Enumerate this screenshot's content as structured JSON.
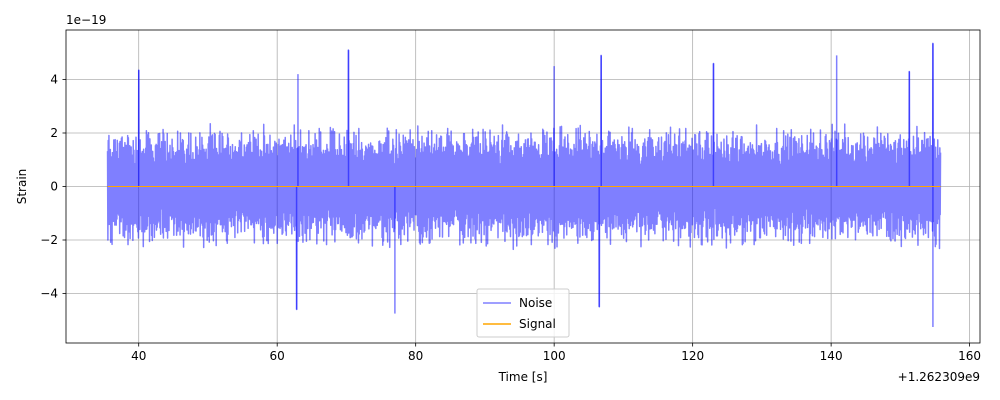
{
  "chart_data": {
    "type": "line",
    "title": "",
    "xlabel": "Time [s]",
    "ylabel": "Strain",
    "x_offset_label": "+1.262309e9",
    "y_scale_label": "1e−19",
    "xlim": [
      29.5,
      161.5
    ],
    "ylim": [
      -5.85,
      5.85
    ],
    "x_ticks": [
      40,
      60,
      80,
      100,
      120,
      140,
      160
    ],
    "x_tick_labels": [
      "40",
      "60",
      "80",
      "100",
      "120",
      "140",
      "160"
    ],
    "y_ticks": [
      -4,
      -2,
      0,
      2,
      4
    ],
    "y_tick_labels": [
      "−4",
      "−2",
      "0",
      "2",
      "4"
    ],
    "grid": true,
    "legend_position": "lower center",
    "series": [
      {
        "name": "Noise",
        "color": "#0000ff",
        "opacity": 0.5,
        "x_range": [
          35.5,
          155.8
        ],
        "typical_amplitude": 2.4,
        "peaks": [
          {
            "x": 40.0,
            "y": 4.35
          },
          {
            "x": 63.0,
            "y": 4.2
          },
          {
            "x": 62.8,
            "y": -4.6
          },
          {
            "x": 70.3,
            "y": 5.1
          },
          {
            "x": 77.0,
            "y": -4.75
          },
          {
            "x": 100.0,
            "y": 4.5
          },
          {
            "x": 106.8,
            "y": 4.9
          },
          {
            "x": 106.5,
            "y": -4.5
          },
          {
            "x": 123.0,
            "y": 4.6
          },
          {
            "x": 140.8,
            "y": 4.9
          },
          {
            "x": 151.3,
            "y": 4.3
          },
          {
            "x": 154.7,
            "y": 5.35
          },
          {
            "x": 154.7,
            "y": -5.25
          }
        ]
      },
      {
        "name": "Signal",
        "color": "#ffa500",
        "x": [
          35.5,
          155.8
        ],
        "y": [
          0,
          0
        ]
      }
    ]
  }
}
